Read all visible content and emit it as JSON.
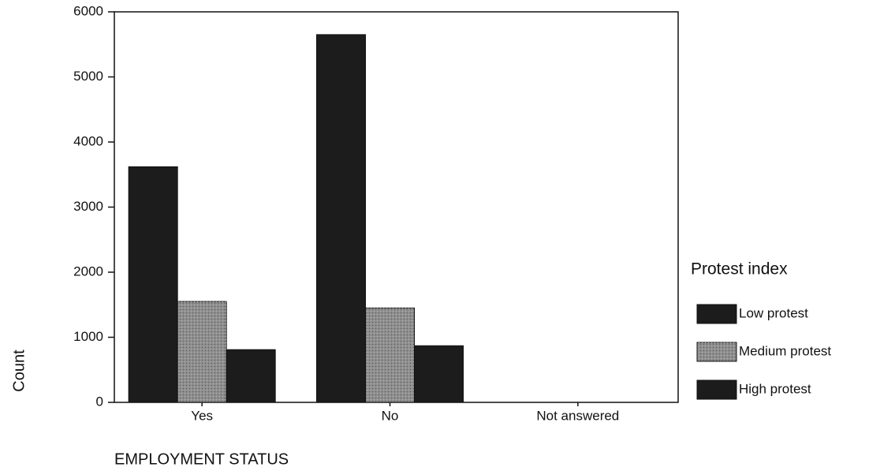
{
  "chart_data": {
    "type": "bar",
    "x_label": "EMPLOYMENT STATUS",
    "y_label": "Count",
    "categories": [
      "Yes",
      "No",
      "Not answered"
    ],
    "series": [
      {
        "name": "Low protest",
        "color": "#1c1c1c",
        "values": [
          3620,
          5650,
          0
        ]
      },
      {
        "name": "Medium protest",
        "color": "#8e8e8e",
        "values": [
          1550,
          1450,
          0
        ]
      },
      {
        "name": "High protest",
        "color": "#1c1c1c",
        "values": [
          810,
          870,
          0
        ]
      }
    ],
    "legend_title": "Protest index",
    "legend_position": "right",
    "ylim": [
      0,
      6000
    ],
    "yticks": [
      0,
      1000,
      2000,
      3000,
      4000,
      5000,
      6000
    ]
  }
}
